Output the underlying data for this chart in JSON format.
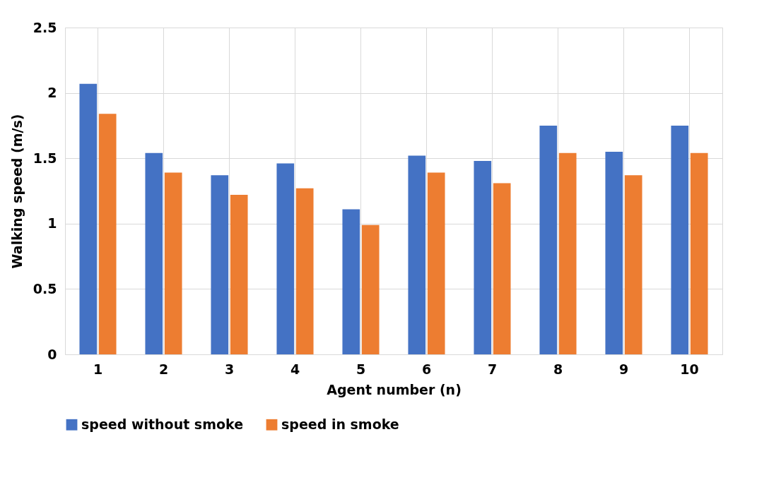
{
  "chart_data": {
    "type": "bar",
    "xlabel": "Agent number (n)",
    "ylabel": "Walking speed (m/s)",
    "categories": [
      "1",
      "2",
      "3",
      "4",
      "5",
      "6",
      "7",
      "8",
      "9",
      "10"
    ],
    "series": [
      {
        "name": "speed without smoke",
        "color": "#4472c4",
        "values": [
          2.07,
          1.54,
          1.37,
          1.46,
          1.11,
          1.52,
          1.48,
          1.75,
          1.55,
          1.75
        ]
      },
      {
        "name": "speed in smoke",
        "color": "#ed7d31",
        "values": [
          1.84,
          1.39,
          1.22,
          1.27,
          0.99,
          1.39,
          1.31,
          1.54,
          1.37,
          1.54
        ]
      }
    ],
    "ylim": [
      0,
      2.5
    ],
    "yticks": [
      0,
      0.5,
      1,
      1.5,
      2,
      2.5
    ],
    "grid": true,
    "legend": "bottom"
  }
}
